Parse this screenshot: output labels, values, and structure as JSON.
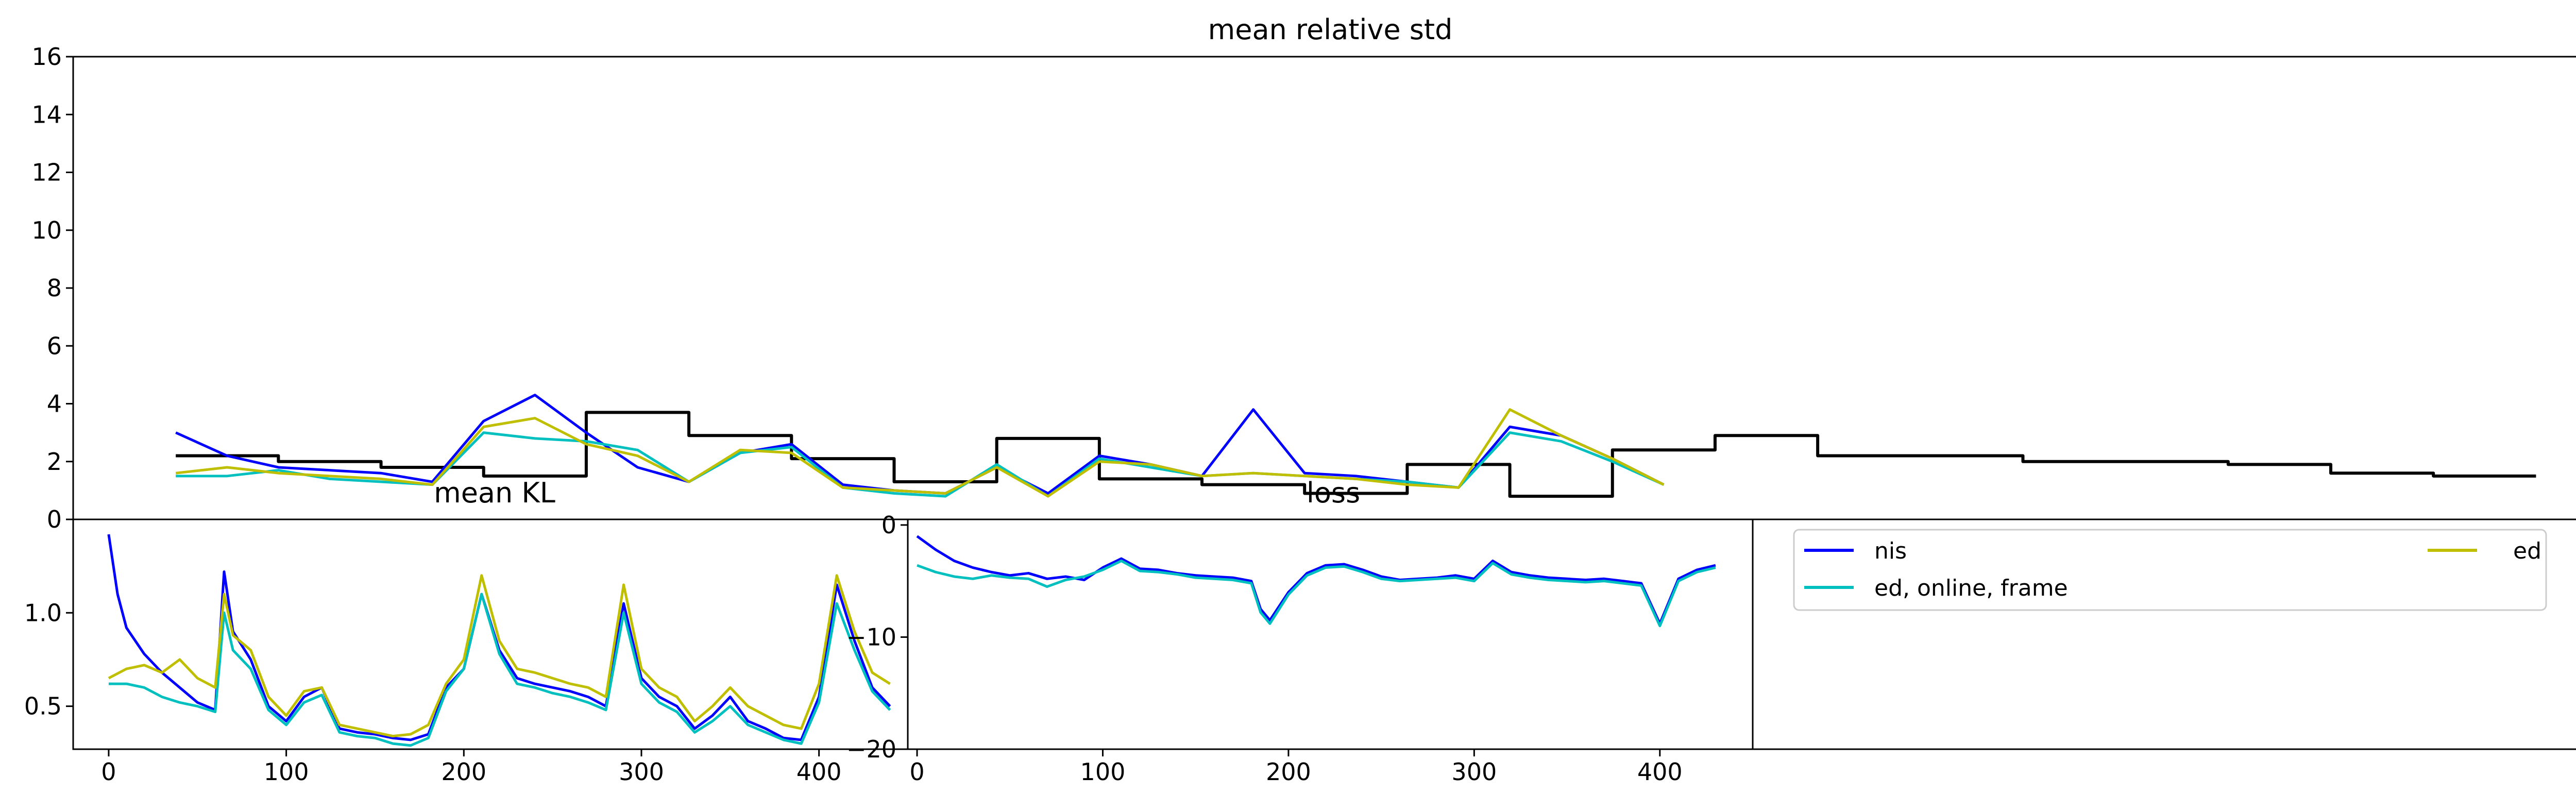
{
  "colors": {
    "nis": "#0000ff",
    "ed_online_frame": "#00bfbf",
    "ed": "#bfbf00",
    "reference": "#000000"
  },
  "legend": {
    "entries": [
      {
        "label": "nis",
        "color": "#0000ff"
      },
      {
        "label": "ed, online, frame",
        "color": "#00bfbf"
      },
      {
        "label": "ed",
        "color": "#bfbf00"
      }
    ],
    "placement": "lower-right panel"
  },
  "chart_data": [
    {
      "type": "line",
      "title": "mean relative std",
      "xlabel": "",
      "ylabel": "",
      "xlim": [
        -20,
        470
      ],
      "ylim": [
        0,
        16
      ],
      "yticks": [
        0,
        2,
        4,
        6,
        8,
        10,
        12,
        14,
        16
      ],
      "grid": false,
      "series": [
        {
          "name": "reference",
          "color": "#000000",
          "step": true,
          "x": [
            0,
            20,
            40,
            60,
            80,
            100,
            120,
            140,
            160,
            180,
            200,
            220,
            240,
            260,
            280,
            300,
            320,
            340,
            360,
            380,
            400,
            420,
            440,
            460
          ],
          "y": [
            2.2,
            2.0,
            1.8,
            1.5,
            3.7,
            2.9,
            2.1,
            1.3,
            2.8,
            1.4,
            1.2,
            0.9,
            1.9,
            0.8,
            2.4,
            2.9,
            2.2,
            2.2,
            2.0,
            2.0,
            1.9,
            1.6,
            1.5,
            1.5
          ]
        },
        {
          "name": "nis",
          "color": "#0000ff",
          "x": [
            0,
            10,
            20,
            30,
            40,
            50,
            60,
            70,
            80,
            90,
            100,
            110,
            120,
            130,
            140,
            150,
            160,
            170,
            180,
            190,
            200,
            210,
            220,
            230,
            240,
            250,
            260,
            270,
            280,
            290
          ],
          "y": [
            3.0,
            2.2,
            1.8,
            1.7,
            1.6,
            1.3,
            3.4,
            4.3,
            3.0,
            1.8,
            1.3,
            2.3,
            2.6,
            1.2,
            1.0,
            0.9,
            1.8,
            0.9,
            2.2,
            1.9,
            1.5,
            3.8,
            1.6,
            1.5,
            1.3,
            1.1,
            3.2,
            2.9,
            2.1,
            1.2
          ]
        },
        {
          "name": "ed, online, frame",
          "color": "#00bfbf",
          "x": [
            0,
            10,
            20,
            30,
            40,
            50,
            60,
            70,
            80,
            90,
            100,
            110,
            120,
            130,
            140,
            150,
            160,
            170,
            180,
            190,
            200,
            210,
            220,
            230,
            240,
            250,
            260,
            270,
            280,
            290
          ],
          "y": [
            1.5,
            1.5,
            1.7,
            1.4,
            1.3,
            1.2,
            3.0,
            2.8,
            2.7,
            2.4,
            1.3,
            2.3,
            2.5,
            1.1,
            0.9,
            0.8,
            1.9,
            0.8,
            2.1,
            1.8,
            1.5,
            1.6,
            1.5,
            1.4,
            1.3,
            1.1,
            3.0,
            2.7,
            2.0,
            1.2
          ]
        },
        {
          "name": "ed",
          "color": "#bfbf00",
          "x": [
            0,
            10,
            20,
            30,
            40,
            50,
            60,
            70,
            80,
            90,
            100,
            110,
            120,
            130,
            140,
            150,
            160,
            170,
            180,
            190,
            200,
            210,
            220,
            230,
            240,
            250,
            260,
            270,
            280,
            290
          ],
          "y": [
            1.6,
            1.8,
            1.6,
            1.5,
            1.4,
            1.2,
            3.2,
            3.5,
            2.6,
            2.2,
            1.3,
            2.4,
            2.3,
            1.1,
            1.0,
            0.9,
            1.8,
            0.8,
            2.0,
            1.9,
            1.5,
            1.6,
            1.5,
            1.4,
            1.2,
            1.1,
            3.8,
            2.9,
            2.1,
            1.2
          ]
        }
      ]
    },
    {
      "type": "line",
      "title": "mean KL",
      "xlabel": "",
      "ylabel": "",
      "xlim": [
        -20,
        450
      ],
      "ylim": [
        0.27,
        1.5
      ],
      "xticks": [
        0,
        100,
        200,
        300,
        400
      ],
      "yticks": [
        0.5,
        1.0
      ],
      "grid": false,
      "series": [
        {
          "name": "nis",
          "color": "#0000ff",
          "x": [
            0,
            5,
            10,
            20,
            30,
            40,
            50,
            60,
            65,
            70,
            80,
            90,
            100,
            110,
            120,
            130,
            140,
            150,
            160,
            170,
            180,
            190,
            200,
            210,
            220,
            230,
            240,
            250,
            260,
            270,
            280,
            290,
            300,
            310,
            320,
            330,
            340,
            350,
            360,
            370,
            380,
            390,
            400,
            410,
            420,
            430,
            440
          ],
          "y": [
            1.42,
            1.1,
            0.92,
            0.78,
            0.68,
            0.6,
            0.52,
            0.48,
            1.22,
            0.9,
            0.75,
            0.5,
            0.42,
            0.55,
            0.6,
            0.38,
            0.36,
            0.35,
            0.33,
            0.32,
            0.35,
            0.6,
            0.7,
            1.1,
            0.8,
            0.65,
            0.62,
            0.6,
            0.58,
            0.55,
            0.5,
            1.05,
            0.65,
            0.55,
            0.5,
            0.38,
            0.45,
            0.55,
            0.42,
            0.38,
            0.33,
            0.32,
            0.55,
            1.15,
            0.85,
            0.6,
            0.5
          ]
        },
        {
          "name": "ed, online, frame",
          "color": "#00bfbf",
          "x": [
            0,
            10,
            20,
            30,
            40,
            50,
            60,
            65,
            70,
            80,
            90,
            100,
            110,
            120,
            130,
            140,
            150,
            160,
            170,
            180,
            190,
            200,
            210,
            220,
            230,
            240,
            250,
            260,
            270,
            280,
            290,
            300,
            310,
            320,
            330,
            340,
            350,
            360,
            370,
            380,
            390,
            400,
            410,
            420,
            430,
            440
          ],
          "y": [
            0.62,
            0.62,
            0.6,
            0.55,
            0.52,
            0.5,
            0.47,
            1.0,
            0.8,
            0.7,
            0.48,
            0.4,
            0.52,
            0.56,
            0.36,
            0.34,
            0.33,
            0.3,
            0.29,
            0.33,
            0.58,
            0.7,
            1.1,
            0.78,
            0.62,
            0.6,
            0.57,
            0.55,
            0.52,
            0.48,
            1.0,
            0.62,
            0.52,
            0.47,
            0.36,
            0.42,
            0.5,
            0.4,
            0.36,
            0.32,
            0.3,
            0.52,
            1.05,
            0.8,
            0.58,
            0.48
          ]
        },
        {
          "name": "ed",
          "color": "#bfbf00",
          "x": [
            0,
            10,
            20,
            30,
            40,
            50,
            60,
            65,
            70,
            80,
            90,
            100,
            110,
            120,
            130,
            140,
            150,
            160,
            170,
            180,
            190,
            200,
            210,
            220,
            230,
            240,
            250,
            260,
            270,
            280,
            290,
            300,
            310,
            320,
            330,
            340,
            350,
            360,
            370,
            380,
            390,
            400,
            410,
            420,
            430,
            440
          ],
          "y": [
            0.65,
            0.7,
            0.72,
            0.68,
            0.75,
            0.65,
            0.6,
            1.1,
            0.88,
            0.8,
            0.55,
            0.45,
            0.58,
            0.6,
            0.4,
            0.38,
            0.36,
            0.34,
            0.35,
            0.4,
            0.62,
            0.75,
            1.2,
            0.85,
            0.7,
            0.68,
            0.65,
            0.62,
            0.6,
            0.55,
            1.15,
            0.7,
            0.6,
            0.55,
            0.42,
            0.5,
            0.6,
            0.5,
            0.45,
            0.4,
            0.38,
            0.62,
            1.2,
            0.9,
            0.68,
            0.62
          ]
        }
      ]
    },
    {
      "type": "line",
      "title": "loss",
      "xlabel": "",
      "ylabel": "",
      "xlim": [
        -5,
        450
      ],
      "ylim": [
        -20,
        0.5
      ],
      "xticks": [
        0,
        100,
        200,
        300,
        400
      ],
      "yticks": [
        0,
        -10,
        -20
      ],
      "ytick_labels": [
        "0",
        "−10",
        "−20"
      ],
      "grid": false,
      "series": [
        {
          "name": "nis",
          "color": "#0000ff",
          "x": [
            0,
            10,
            20,
            30,
            40,
            50,
            60,
            70,
            80,
            90,
            100,
            110,
            120,
            130,
            140,
            150,
            160,
            170,
            180,
            185,
            190,
            200,
            210,
            220,
            230,
            240,
            250,
            260,
            270,
            280,
            290,
            300,
            310,
            320,
            330,
            340,
            350,
            360,
            370,
            380,
            390,
            400,
            410,
            420,
            430
          ],
          "y": [
            -1.0,
            -2.2,
            -3.2,
            -3.8,
            -4.2,
            -4.5,
            -4.3,
            -4.8,
            -4.6,
            -4.9,
            -3.8,
            -3.0,
            -3.9,
            -4.0,
            -4.3,
            -4.5,
            -4.6,
            -4.7,
            -5.0,
            -7.5,
            -8.5,
            -6.0,
            -4.3,
            -3.6,
            -3.5,
            -4.0,
            -4.6,
            -4.9,
            -4.8,
            -4.7,
            -4.5,
            -4.8,
            -3.2,
            -4.2,
            -4.5,
            -4.7,
            -4.8,
            -4.9,
            -4.8,
            -5.0,
            -5.2,
            -8.8,
            -4.8,
            -4.0,
            -3.6
          ]
        },
        {
          "name": "ed, online, frame",
          "color": "#00bfbf",
          "x": [
            0,
            10,
            20,
            30,
            40,
            50,
            60,
            70,
            80,
            90,
            100,
            110,
            120,
            130,
            140,
            150,
            160,
            170,
            180,
            185,
            190,
            200,
            210,
            220,
            230,
            240,
            250,
            260,
            270,
            280,
            290,
            300,
            310,
            320,
            330,
            340,
            350,
            360,
            370,
            380,
            390,
            400,
            410,
            420,
            430
          ],
          "y": [
            -3.6,
            -4.2,
            -4.6,
            -4.8,
            -4.5,
            -4.7,
            -4.8,
            -5.5,
            -4.9,
            -4.6,
            -4.0,
            -3.2,
            -4.1,
            -4.2,
            -4.4,
            -4.7,
            -4.8,
            -4.9,
            -5.2,
            -7.8,
            -8.8,
            -6.2,
            -4.5,
            -3.8,
            -3.7,
            -4.2,
            -4.8,
            -5.0,
            -4.9,
            -4.8,
            -4.7,
            -5.0,
            -3.4,
            -4.4,
            -4.7,
            -4.9,
            -5.0,
            -5.1,
            -5.0,
            -5.2,
            -5.4,
            -9.0,
            -5.0,
            -4.2,
            -3.8
          ]
        }
      ]
    },
    {
      "type": "line",
      "title": "",
      "xlabel": "",
      "ylabel": "",
      "grid": false,
      "note_legend_only": true
    }
  ]
}
